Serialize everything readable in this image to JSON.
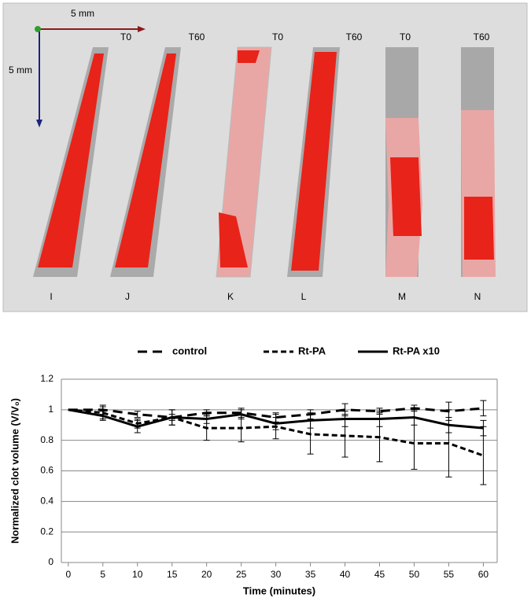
{
  "panel": {
    "scale_x": "5 mm",
    "scale_y": "5 mm",
    "columns": [
      {
        "time": "T0",
        "label": "I"
      },
      {
        "time": "T60",
        "label": "J"
      },
      {
        "time": "T0",
        "label": "K"
      },
      {
        "time": "T60",
        "label": "L"
      },
      {
        "time": "T0",
        "label": "M"
      },
      {
        "time": "T60",
        "label": "N"
      }
    ]
  },
  "chart_data": {
    "type": "line",
    "x_label": "Time (minutes)",
    "y_label": "Normalized clot volume (V/V₀)",
    "x": [
      0,
      5,
      10,
      15,
      20,
      25,
      30,
      35,
      40,
      45,
      50,
      55,
      60
    ],
    "series": [
      {
        "name": "control",
        "color": "#000000",
        "dash": "long",
        "values": [
          1,
          1.0,
          0.97,
          0.95,
          0.98,
          0.98,
          0.95,
          0.97,
          1.0,
          0.99,
          1.01,
          0.99,
          1.01
        ],
        "errors": [
          0,
          0.03,
          0.02,
          0.02,
          0.02,
          0.03,
          0.03,
          0.03,
          0.04,
          0.02,
          0.02,
          0.06,
          0.05
        ]
      },
      {
        "name": "Rt-PA",
        "color": "#000000",
        "dash": "short",
        "values": [
          1,
          0.98,
          0.91,
          0.95,
          0.88,
          0.88,
          0.89,
          0.84,
          0.83,
          0.82,
          0.78,
          0.78,
          0.7
        ],
        "errors": [
          0,
          0.04,
          0.03,
          0.05,
          0.08,
          0.09,
          0.08,
          0.13,
          0.14,
          0.16,
          0.17,
          0.22,
          0.19
        ]
      },
      {
        "name": "Rt-PA x10",
        "color": "#000000",
        "dash": "solid",
        "values": [
          1,
          0.96,
          0.89,
          0.95,
          0.94,
          0.97,
          0.91,
          0.93,
          0.94,
          0.94,
          0.95,
          0.9,
          0.88
        ],
        "errors": [
          0,
          0.03,
          0.04,
          0.05,
          0.03,
          0.03,
          0.04,
          0.05,
          0.05,
          0.05,
          0.05,
          0.05,
          0.05
        ]
      }
    ],
    "xlim": [
      -1,
      62
    ],
    "xticks": [
      0,
      5,
      10,
      15,
      20,
      25,
      30,
      35,
      40,
      45,
      50,
      55,
      60
    ],
    "ylim": [
      0,
      1.2
    ],
    "yticks": [
      0,
      0.2,
      0.4,
      0.6,
      0.8,
      1,
      1.2
    ],
    "grid": true
  }
}
